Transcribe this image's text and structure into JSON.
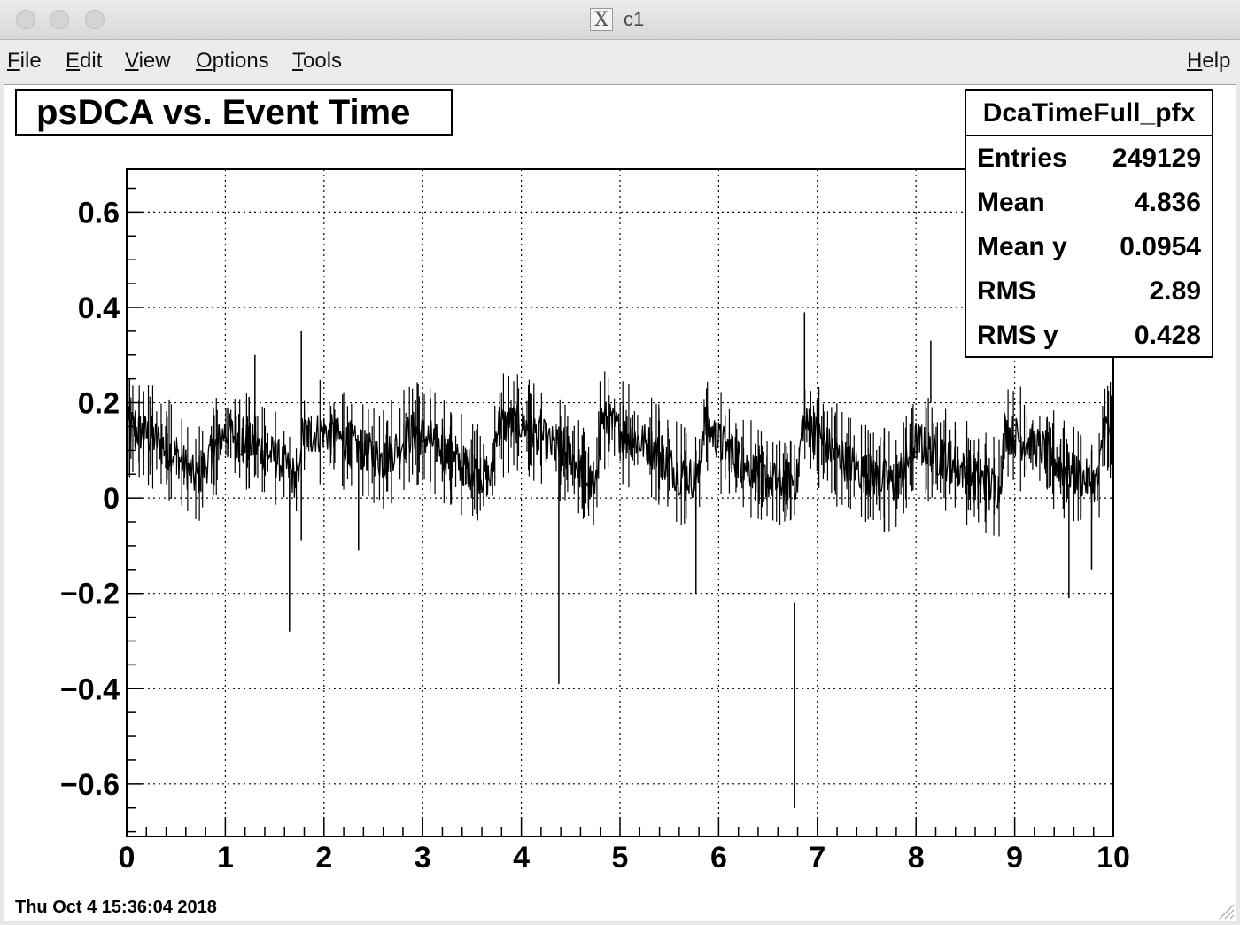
{
  "window": {
    "title": "c1",
    "app_icon": "x11-icon"
  },
  "menu": {
    "file": "File",
    "edit": "Edit",
    "view": "View",
    "options": "Options",
    "tools": "Tools",
    "help": "Help"
  },
  "stats": {
    "name": "DcaTimeFull_pfx",
    "rows": [
      {
        "label": "Entries",
        "value": "249129"
      },
      {
        "label": "Mean",
        "value": "4.836"
      },
      {
        "label": "Mean y",
        "value": "0.0954"
      },
      {
        "label": "RMS",
        "value": "2.89"
      },
      {
        "label": "RMS y",
        "value": "0.428"
      }
    ]
  },
  "timestamp": "Thu Oct  4 15:36:04 2018",
  "chart_data": {
    "type": "line",
    "title": "psDCA vs. Event Time",
    "xlabel": "",
    "ylabel": "",
    "xlim": [
      0,
      10
    ],
    "ylim": [
      -0.71,
      0.69
    ],
    "x_ticks": [
      "0",
      "1",
      "2",
      "3",
      "4",
      "5",
      "6",
      "7",
      "8",
      "9",
      "10"
    ],
    "y_ticks": [
      "0.6",
      "0.4",
      "0.2",
      "0",
      "−0.2",
      "−0.4",
      "−0.6"
    ],
    "y_tick_values": [
      0.6,
      0.4,
      0.2,
      0,
      -0.2,
      -0.4,
      -0.6
    ],
    "grid": true,
    "line_color": "#000000",
    "series": [
      {
        "x": [
          0,
          0.25,
          0.5,
          0.7,
          0.8,
          1.0,
          1.2,
          1.4,
          1.6,
          1.75,
          1.76,
          2.0,
          2.3,
          2.6,
          2.9,
          3.1,
          3.3,
          3.5,
          3.7,
          3.75,
          4.0,
          4.3,
          4.5,
          4.7,
          4.75,
          4.8,
          5.0,
          5.3,
          5.6,
          5.8,
          5.85,
          6.0,
          6.2,
          6.4,
          6.6,
          6.8,
          6.85,
          7.0,
          7.2,
          7.5,
          7.8,
          8.0,
          8.2,
          8.4,
          8.6,
          8.85,
          8.9,
          9.0,
          9.3,
          9.5,
          9.7,
          9.85,
          9.9,
          10.0
        ],
        "y": [
          0.15,
          0.13,
          0.09,
          0.04,
          0.07,
          0.14,
          0.12,
          0.1,
          0.07,
          0.03,
          0.13,
          0.14,
          0.11,
          0.08,
          0.14,
          0.12,
          0.08,
          0.06,
          0.04,
          0.15,
          0.16,
          0.11,
          0.09,
          0.03,
          0.0,
          0.17,
          0.14,
          0.11,
          0.05,
          0.04,
          0.16,
          0.12,
          0.08,
          0.05,
          0.03,
          0.04,
          0.16,
          0.13,
          0.09,
          0.05,
          0.03,
          0.12,
          0.09,
          0.07,
          0.04,
          0.02,
          0.14,
          0.13,
          0.1,
          0.06,
          0.04,
          0.03,
          0.15,
          0.14
        ],
        "outliers": [
          {
            "x": 1.3,
            "low": 0.12,
            "high": 0.3
          },
          {
            "x": 1.65,
            "low": -0.28,
            "high": 0.04
          },
          {
            "x": 1.77,
            "low": -0.09,
            "high": 0.35
          },
          {
            "x": 2.35,
            "low": -0.11,
            "high": 0.1
          },
          {
            "x": 4.38,
            "low": -0.39,
            "high": 0.15
          },
          {
            "x": 5.77,
            "low": -0.2,
            "high": 0.1
          },
          {
            "x": 6.77,
            "low": -0.65,
            "high": -0.22
          },
          {
            "x": 6.87,
            "low": 0.15,
            "high": 0.39
          },
          {
            "x": 8.15,
            "low": 0.2,
            "high": 0.33
          },
          {
            "x": 9.55,
            "low": -0.21,
            "high": 0.03
          },
          {
            "x": 9.78,
            "low": -0.15,
            "high": 0.1
          }
        ]
      }
    ]
  }
}
